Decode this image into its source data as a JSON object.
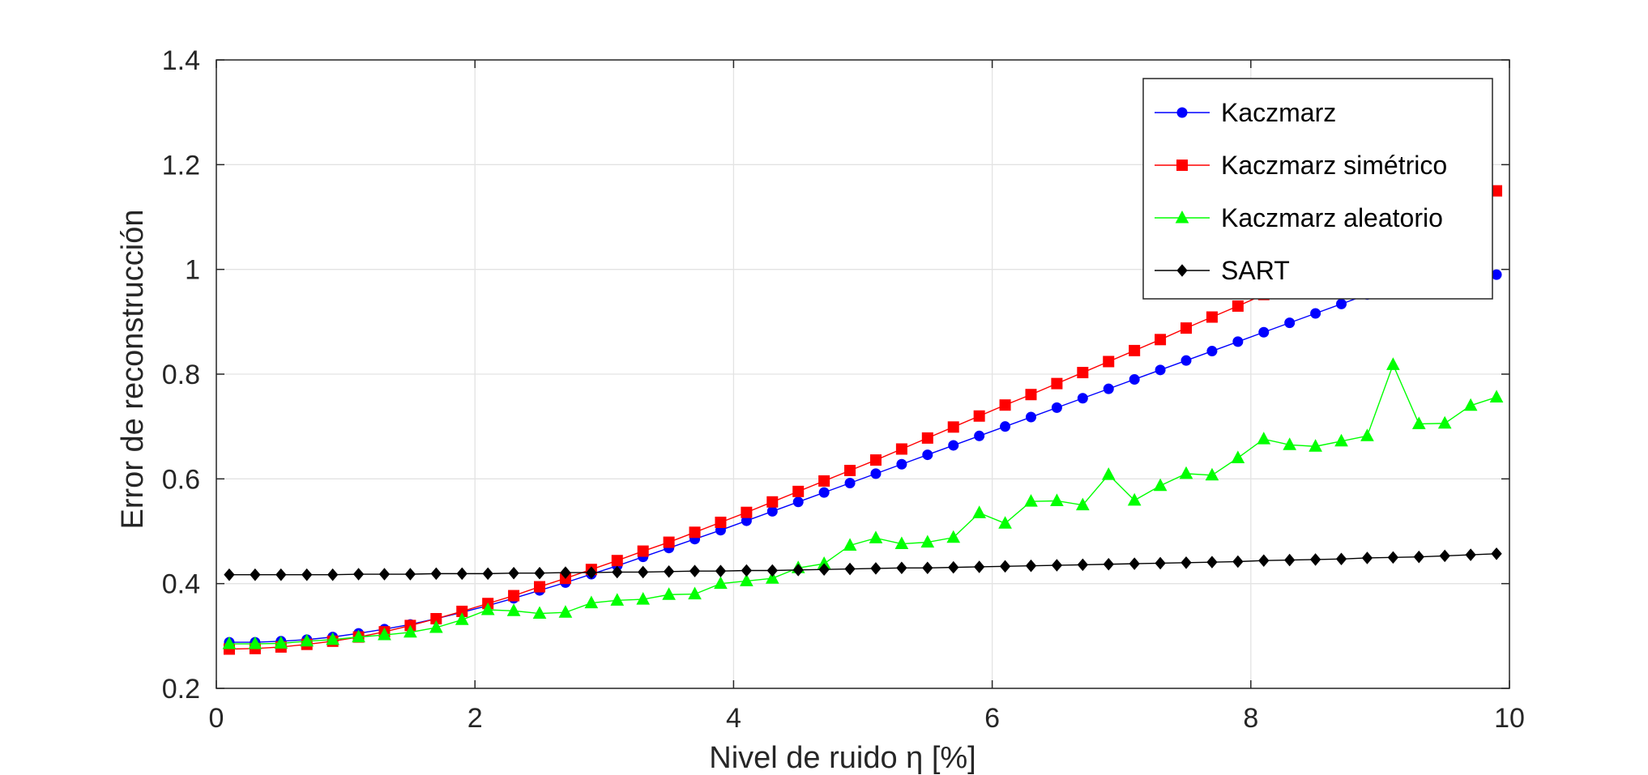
{
  "chart_data": {
    "type": "line",
    "title": "",
    "xlabel": "Nivel de ruido η [%]",
    "ylabel": "Error de reconstrucción",
    "xlim": [
      0,
      10
    ],
    "ylim": [
      0.2,
      1.4
    ],
    "xticks": [
      0,
      2,
      4,
      6,
      8,
      10
    ],
    "xtick_labels": [
      "0",
      "2",
      "4",
      "6",
      "8",
      "10"
    ],
    "yticks": [
      0.2,
      0.4,
      0.6,
      0.8,
      1.0,
      1.2,
      1.4
    ],
    "ytick_labels": [
      "0.2",
      "0.4",
      "0.6",
      "0.8",
      "1",
      "1.2",
      "1.4"
    ],
    "grid": true,
    "legend_position": "top-right",
    "x": [
      0.1,
      0.3,
      0.5,
      0.7,
      0.9,
      1.1,
      1.3,
      1.5,
      1.7,
      1.9,
      2.1,
      2.3,
      2.5,
      2.7,
      2.9,
      3.1,
      3.3,
      3.5,
      3.7,
      3.9,
      4.1,
      4.3,
      4.5,
      4.7,
      4.9,
      5.1,
      5.3,
      5.5,
      5.7,
      5.9,
      6.1,
      6.3,
      6.5,
      6.7,
      6.9,
      7.1,
      7.3,
      7.5,
      7.7,
      7.9,
      8.1,
      8.3,
      8.5,
      8.7,
      8.9,
      9.1,
      9.3,
      9.5,
      9.7,
      9.9
    ],
    "series": [
      {
        "name": "Kaczmarz",
        "color": "#0000ff",
        "marker": "circle",
        "values": [
          0.288,
          0.288,
          0.29,
          0.293,
          0.298,
          0.305,
          0.313,
          0.322,
          0.333,
          0.345,
          0.358,
          0.372,
          0.387,
          0.402,
          0.418,
          0.434,
          0.451,
          0.468,
          0.485,
          0.502,
          0.52,
          0.538,
          0.556,
          0.574,
          0.592,
          0.61,
          0.628,
          0.646,
          0.664,
          0.682,
          0.7,
          0.718,
          0.736,
          0.754,
          0.772,
          0.79,
          0.808,
          0.826,
          0.844,
          0.862,
          0.88,
          0.898,
          0.916,
          0.934,
          0.952,
          0.97,
          0.988,
          1.0,
          1.01,
          0.99
        ]
      },
      {
        "name": "Kaczmarz simétrico",
        "color": "#ff0000",
        "marker": "square",
        "values": [
          0.275,
          0.276,
          0.279,
          0.284,
          0.29,
          0.298,
          0.308,
          0.32,
          0.333,
          0.347,
          0.362,
          0.377,
          0.394,
          0.41,
          0.427,
          0.444,
          0.462,
          0.479,
          0.498,
          0.517,
          0.536,
          0.556,
          0.576,
          0.596,
          0.616,
          0.636,
          0.657,
          0.678,
          0.699,
          0.72,
          0.741,
          0.761,
          0.782,
          0.803,
          0.824,
          0.845,
          0.866,
          0.888,
          0.909,
          0.93,
          0.952,
          0.973,
          0.994,
          1.016,
          1.037,
          1.058,
          1.08,
          1.102,
          1.125,
          1.15
        ]
      },
      {
        "name": "Kaczmarz aleatorio",
        "color": "#00ff00",
        "marker": "triangle",
        "values": [
          0.285,
          0.285,
          0.286,
          0.29,
          0.293,
          0.298,
          0.302,
          0.307,
          0.316,
          0.331,
          0.35,
          0.348,
          0.343,
          0.345,
          0.363,
          0.368,
          0.37,
          0.379,
          0.38,
          0.4,
          0.405,
          0.41,
          0.43,
          0.438,
          0.473,
          0.487,
          0.476,
          0.479,
          0.488,
          0.535,
          0.515,
          0.557,
          0.558,
          0.55,
          0.608,
          0.559,
          0.587,
          0.61,
          0.607,
          0.64,
          0.676,
          0.665,
          0.662,
          0.672,
          0.682,
          0.818,
          0.705,
          0.706,
          0.74,
          0.756
        ]
      },
      {
        "name": "SART",
        "color": "#000000",
        "marker": "diamond",
        "values": [
          0.417,
          0.417,
          0.417,
          0.417,
          0.417,
          0.418,
          0.418,
          0.418,
          0.419,
          0.419,
          0.419,
          0.42,
          0.42,
          0.421,
          0.421,
          0.422,
          0.422,
          0.423,
          0.424,
          0.424,
          0.425,
          0.425,
          0.426,
          0.427,
          0.428,
          0.429,
          0.43,
          0.43,
          0.431,
          0.432,
          0.433,
          0.434,
          0.435,
          0.436,
          0.437,
          0.438,
          0.439,
          0.44,
          0.441,
          0.442,
          0.444,
          0.445,
          0.446,
          0.447,
          0.449,
          0.45,
          0.451,
          0.453,
          0.455,
          0.457
        ]
      }
    ]
  }
}
